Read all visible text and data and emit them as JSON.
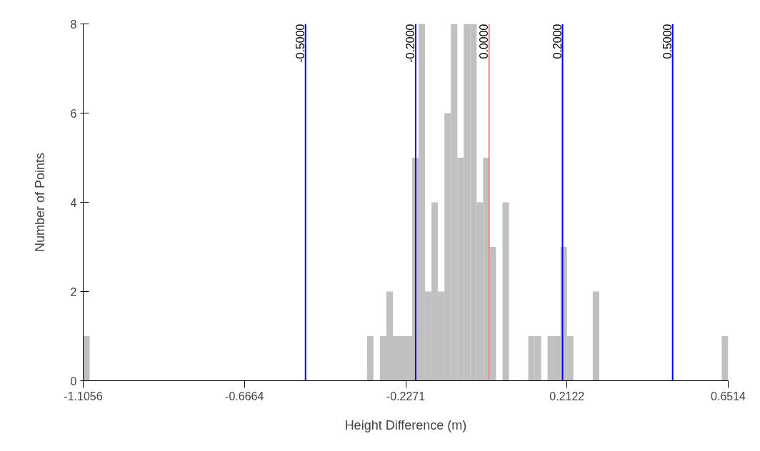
{
  "chart_data": {
    "type": "histogram",
    "xlabel": "Height Difference (m)",
    "ylabel": "Number of Points",
    "bins": [
      -1.1056,
      -1.088,
      -1.0705,
      -1.0529,
      -1.0353,
      -1.0178,
      -1.0002,
      -0.9826,
      -0.965,
      -0.9475,
      -0.9299,
      -0.9123,
      -0.8948,
      -0.8772,
      -0.8596,
      -0.8421,
      -0.8245,
      -0.8069,
      -0.7893,
      -0.7718,
      -0.7542,
      -0.7366,
      -0.7191,
      -0.7015,
      -0.6839,
      -0.6664,
      -0.6488,
      -0.6312,
      -0.6136,
      -0.5961,
      -0.5785,
      -0.5609,
      -0.5434,
      -0.5258,
      -0.5082,
      -0.4907,
      -0.4731,
      -0.4555,
      -0.4379,
      -0.4204,
      -0.4028,
      -0.3852,
      -0.3677,
      -0.3501,
      -0.3325,
      -0.315,
      -0.2974,
      -0.2798,
      -0.2622,
      -0.2447,
      -0.2271,
      -0.2095,
      -0.192,
      -0.1744,
      -0.1568,
      -0.1393,
      -0.1217,
      -0.1041,
      -0.0865,
      -0.069,
      -0.0514,
      -0.0338,
      -0.0163,
      0.0013,
      0.0189,
      0.0365,
      0.054,
      0.0716,
      0.0892,
      0.1067,
      0.1243,
      0.1419,
      0.1594,
      0.177,
      0.1946,
      0.2122,
      0.2297,
      0.2473,
      0.2649,
      0.2824,
      0.3,
      0.3176,
      0.3351,
      0.3527,
      0.3703,
      0.3879,
      0.4054,
      0.423,
      0.4406,
      0.4581,
      0.4757,
      0.4933,
      0.5108,
      0.5284,
      0.546,
      0.5636,
      0.5811,
      0.5987,
      0.6163,
      0.6338,
      0.6514
    ],
    "values": [
      1,
      0,
      0,
      0,
      0,
      0,
      0,
      0,
      0,
      0,
      0,
      0,
      0,
      0,
      0,
      0,
      0,
      0,
      0,
      0,
      0,
      0,
      0,
      0,
      0,
      0,
      0,
      0,
      0,
      0,
      0,
      0,
      0,
      0,
      0,
      0,
      0,
      0,
      0,
      0,
      0,
      0,
      0,
      0,
      1,
      0,
      1,
      2,
      1,
      1,
      1,
      5,
      8,
      2,
      4,
      2,
      6,
      8,
      5,
      8,
      8,
      4,
      5,
      3,
      0,
      4,
      0,
      0,
      0,
      1,
      1,
      0,
      1,
      1,
      3,
      1,
      0,
      0,
      0,
      2,
      0,
      0,
      0,
      0,
      0,
      0,
      0,
      0,
      0,
      0,
      0,
      0,
      0,
      0,
      0,
      0,
      0,
      0,
      0,
      1
    ],
    "color": "#c0c0c0",
    "xlim": [
      -1.1056,
      0.6514
    ],
    "xticks": [
      -1.1056,
      -0.6664,
      -0.2271,
      0.2122,
      0.6514
    ],
    "ylim": [
      0,
      8
    ],
    "yticks": [
      0,
      2,
      4,
      6,
      8
    ],
    "grid": false,
    "ref_lines": [
      {
        "axis": "x",
        "value": -0.5,
        "label": "-0.5000",
        "color": "#0000ff"
      },
      {
        "axis": "x",
        "value": -0.2,
        "label": "-0.2000",
        "color": "#0000ff"
      },
      {
        "axis": "x",
        "value": 0.0,
        "label": "0.0000",
        "color": "#ff8080"
      },
      {
        "axis": "x",
        "value": 0.2,
        "label": "0.2000",
        "color": "#0000ff"
      },
      {
        "axis": "x",
        "value": 0.5,
        "label": "0.5000",
        "color": "#0000ff"
      }
    ]
  }
}
